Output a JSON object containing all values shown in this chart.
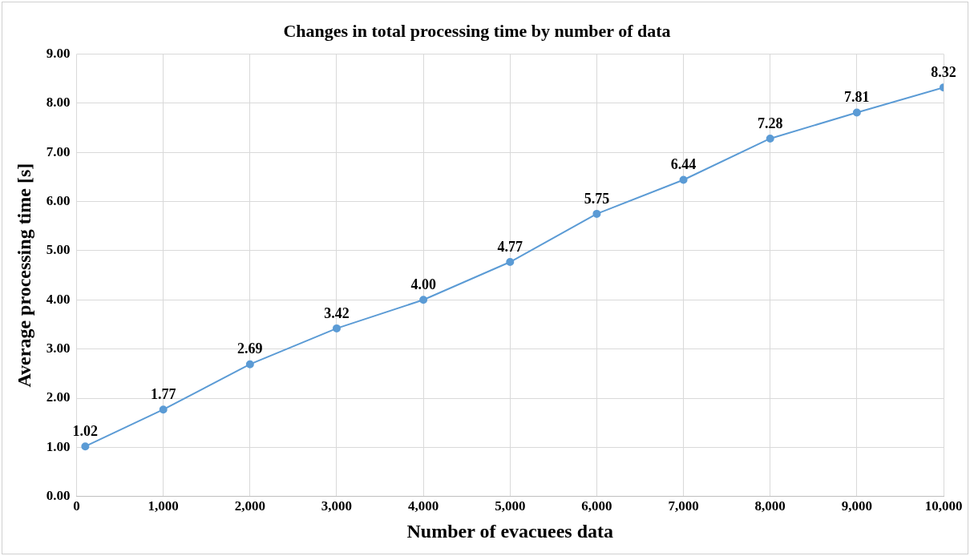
{
  "chart_data": {
    "type": "line",
    "title": "Changes in total processing time by number of data",
    "xlabel": "Number of evacuees data",
    "ylabel": "Average processing time [s]",
    "x": [
      100,
      1000,
      2000,
      3000,
      4000,
      5000,
      6000,
      7000,
      8000,
      9000,
      10000
    ],
    "series": [
      {
        "color": "#5b9bd5",
        "values": [
          1.02,
          1.77,
          2.69,
          3.42,
          4.0,
          4.77,
          5.75,
          6.44,
          7.28,
          7.81,
          8.32
        ]
      }
    ],
    "xlim": [
      0,
      10000
    ],
    "xticks": [
      0,
      {
        "value": 1000,
        "label": "1,000"
      },
      {
        "value": 2000,
        "label": "2,000"
      },
      {
        "value": 3000,
        "label": "3,000"
      },
      {
        "value": 4000,
        "label": "4,000"
      },
      {
        "value": 5000,
        "label": "5,000"
      },
      {
        "value": 6000,
        "label": "6,000"
      },
      {
        "value": 7000,
        "label": "7,000"
      },
      {
        "value": 8000,
        "label": "8,000"
      },
      {
        "value": 9000,
        "label": "9,000"
      },
      {
        "value": 10000,
        "label": "10,000"
      }
    ],
    "ylim": [
      0,
      9
    ],
    "yticks": [
      {
        "value": 0,
        "label": "0.00"
      },
      {
        "value": 1,
        "label": "1.00"
      },
      {
        "value": 2,
        "label": "2.00"
      },
      {
        "value": 3,
        "label": "3.00"
      },
      {
        "value": 4,
        "label": "4.00"
      },
      {
        "value": 5,
        "label": "5.00"
      },
      {
        "value": 6,
        "label": "6.00"
      },
      {
        "value": 7,
        "label": "7.00"
      },
      {
        "value": 8,
        "label": "8.00"
      },
      {
        "value": 9,
        "label": "9.00"
      }
    ],
    "value_labels": [
      "1.02",
      "1.77",
      "2.69",
      "3.42",
      "4.00",
      "4.77",
      "5.75",
      "6.44",
      "7.28",
      "7.81",
      "8.32"
    ],
    "grid": true,
    "legend": false,
    "marker": "circle",
    "line_style": "solid"
  }
}
